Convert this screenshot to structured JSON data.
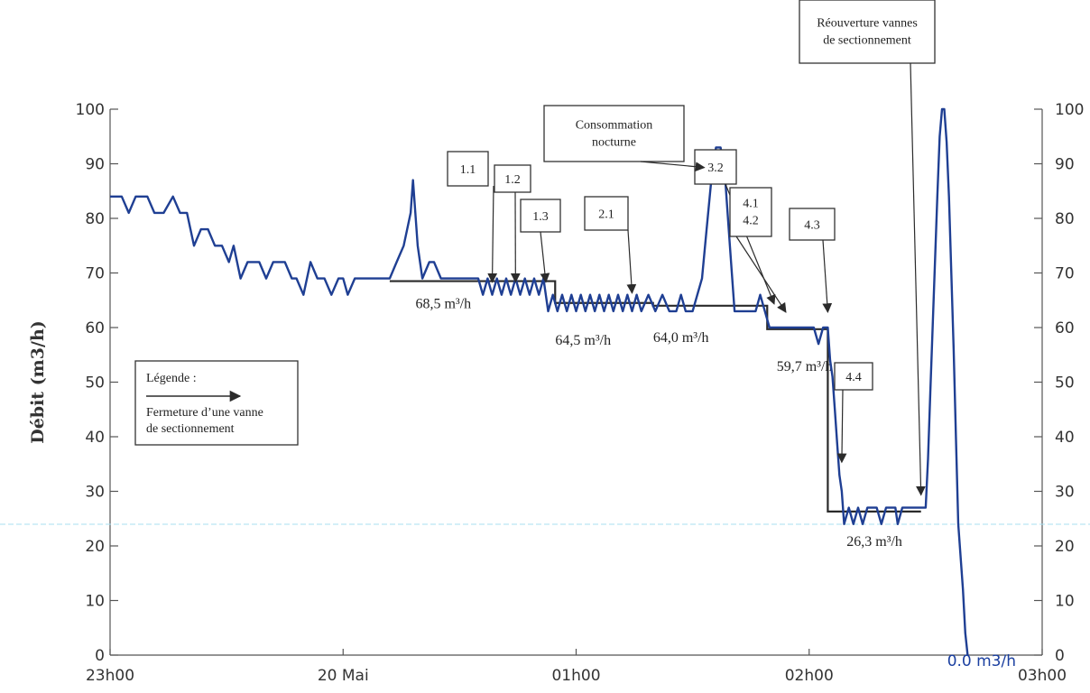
{
  "chart_data": {
    "type": "line",
    "ylabel": "Débit  (m3/h)",
    "ylim": [
      0,
      100
    ],
    "yticks": [
      0,
      10,
      20,
      30,
      40,
      50,
      60,
      70,
      80,
      90,
      100
    ],
    "xlim_hours": [
      0,
      4
    ],
    "xticks": [
      {
        "t": 0,
        "label": "23h00"
      },
      {
        "t": 1,
        "label": "20 Mai"
      },
      {
        "t": 2,
        "label": "01h00"
      },
      {
        "t": 3,
        "label": "02h00"
      },
      {
        "t": 4,
        "label": "03h00"
      }
    ],
    "grid": false,
    "series": [
      {
        "color": "#1f3f93",
        "points": [
          [
            0.0,
            84
          ],
          [
            0.05,
            84
          ],
          [
            0.08,
            81
          ],
          [
            0.11,
            84
          ],
          [
            0.16,
            84
          ],
          [
            0.19,
            81
          ],
          [
            0.23,
            81
          ],
          [
            0.27,
            84
          ],
          [
            0.3,
            81
          ],
          [
            0.33,
            81
          ],
          [
            0.36,
            75
          ],
          [
            0.39,
            78
          ],
          [
            0.42,
            78
          ],
          [
            0.45,
            75
          ],
          [
            0.48,
            75
          ],
          [
            0.51,
            72
          ],
          [
            0.53,
            75
          ],
          [
            0.56,
            69
          ],
          [
            0.59,
            72
          ],
          [
            0.64,
            72
          ],
          [
            0.67,
            69
          ],
          [
            0.7,
            72
          ],
          [
            0.75,
            72
          ],
          [
            0.78,
            69
          ],
          [
            0.8,
            69
          ],
          [
            0.83,
            66
          ],
          [
            0.86,
            72
          ],
          [
            0.89,
            69
          ],
          [
            0.92,
            69
          ],
          [
            0.95,
            66
          ],
          [
            0.98,
            69
          ],
          [
            1.0,
            69
          ],
          [
            1.02,
            66
          ],
          [
            1.05,
            69
          ],
          [
            1.1,
            69
          ],
          [
            1.15,
            69
          ],
          [
            1.2,
            69
          ],
          [
            1.23,
            72
          ],
          [
            1.26,
            75
          ],
          [
            1.29,
            81
          ],
          [
            1.3,
            87
          ],
          [
            1.31,
            81
          ],
          [
            1.32,
            75
          ],
          [
            1.34,
            69
          ],
          [
            1.37,
            72
          ],
          [
            1.39,
            72
          ],
          [
            1.42,
            69
          ],
          [
            1.45,
            69
          ],
          [
            1.5,
            69
          ],
          [
            1.55,
            69
          ],
          [
            1.58,
            69
          ],
          [
            1.6,
            66
          ],
          [
            1.62,
            69
          ],
          [
            1.64,
            66
          ],
          [
            1.66,
            69
          ],
          [
            1.68,
            66
          ],
          [
            1.7,
            69
          ],
          [
            1.72,
            66
          ],
          [
            1.74,
            69
          ],
          [
            1.76,
            66
          ],
          [
            1.78,
            69
          ],
          [
            1.8,
            66
          ],
          [
            1.82,
            69
          ],
          [
            1.84,
            66
          ],
          [
            1.86,
            69
          ],
          [
            1.88,
            63
          ],
          [
            1.9,
            66
          ],
          [
            1.92,
            63
          ],
          [
            1.94,
            66
          ],
          [
            1.96,
            63
          ],
          [
            1.98,
            66
          ],
          [
            2.0,
            63
          ],
          [
            2.02,
            66
          ],
          [
            2.04,
            63
          ],
          [
            2.06,
            66
          ],
          [
            2.08,
            63
          ],
          [
            2.1,
            66
          ],
          [
            2.12,
            63
          ],
          [
            2.14,
            66
          ],
          [
            2.16,
            63
          ],
          [
            2.18,
            66
          ],
          [
            2.2,
            63
          ],
          [
            2.22,
            66
          ],
          [
            2.24,
            63
          ],
          [
            2.26,
            66
          ],
          [
            2.28,
            63
          ],
          [
            2.31,
            66
          ],
          [
            2.34,
            63
          ],
          [
            2.37,
            66
          ],
          [
            2.4,
            63
          ],
          [
            2.43,
            63
          ],
          [
            2.45,
            66
          ],
          [
            2.47,
            63
          ],
          [
            2.5,
            63
          ],
          [
            2.52,
            66
          ],
          [
            2.54,
            69
          ],
          [
            2.56,
            78
          ],
          [
            2.58,
            87
          ],
          [
            2.6,
            93
          ],
          [
            2.62,
            93
          ],
          [
            2.64,
            87
          ],
          [
            2.66,
            75
          ],
          [
            2.68,
            63
          ],
          [
            2.71,
            63
          ],
          [
            2.73,
            63
          ],
          [
            2.75,
            63
          ],
          [
            2.77,
            63
          ],
          [
            2.79,
            66
          ],
          [
            2.81,
            63
          ],
          [
            2.83,
            60
          ],
          [
            2.85,
            60
          ],
          [
            2.9,
            60
          ],
          [
            2.95,
            60
          ],
          [
            3.0,
            60
          ],
          [
            3.02,
            60
          ],
          [
            3.04,
            57
          ],
          [
            3.06,
            60
          ],
          [
            3.08,
            60
          ],
          [
            3.09,
            54
          ],
          [
            3.1,
            51
          ],
          [
            3.11,
            45
          ],
          [
            3.12,
            39
          ],
          [
            3.13,
            33
          ],
          [
            3.14,
            30
          ],
          [
            3.15,
            24
          ],
          [
            3.17,
            27
          ],
          [
            3.19,
            24
          ],
          [
            3.21,
            27
          ],
          [
            3.23,
            24
          ],
          [
            3.25,
            27
          ],
          [
            3.27,
            27
          ],
          [
            3.29,
            27
          ],
          [
            3.31,
            24
          ],
          [
            3.33,
            27
          ],
          [
            3.35,
            27
          ],
          [
            3.37,
            27
          ],
          [
            3.38,
            24
          ],
          [
            3.4,
            27
          ],
          [
            3.42,
            27
          ],
          [
            3.44,
            27
          ],
          [
            3.46,
            27
          ],
          [
            3.48,
            27
          ],
          [
            3.5,
            27
          ],
          [
            3.51,
            36
          ],
          [
            3.52,
            48
          ],
          [
            3.53,
            60
          ],
          [
            3.54,
            72
          ],
          [
            3.55,
            84
          ],
          [
            3.56,
            95
          ],
          [
            3.57,
            100
          ],
          [
            3.58,
            100
          ],
          [
            3.59,
            94
          ],
          [
            3.6,
            84
          ],
          [
            3.61,
            70
          ],
          [
            3.62,
            56
          ],
          [
            3.63,
            40
          ],
          [
            3.64,
            24
          ],
          [
            3.66,
            12
          ],
          [
            3.67,
            4
          ],
          [
            3.68,
            0
          ]
        ]
      }
    ],
    "levels": [
      {
        "label": "68,5 m³/h",
        "value": 68.5,
        "t_start": 1.2,
        "t_end": 1.91
      },
      {
        "label": "64,5 m³/h",
        "value": 64.5,
        "t_start": 1.91,
        "t_end": 2.33
      },
      {
        "label": "64,0 m³/h",
        "value": 64.0,
        "t_start": 2.33,
        "t_end": 2.82
      },
      {
        "label": "59,7 m³/h",
        "value": 59.7,
        "t_start": 2.82,
        "t_end": 3.08
      },
      {
        "label": "26,3 m³/h",
        "value": 26.3,
        "t_start": 3.08,
        "t_end": 3.48
      }
    ],
    "zero_label": "0.0 m3/h",
    "annotations": [
      {
        "text": "1.1",
        "t": 1.64,
        "y_tip": 67
      },
      {
        "text": "1.2",
        "t": 1.74,
        "y_tip": 67
      },
      {
        "text": "1.3",
        "t": 1.87,
        "y_tip": 67
      },
      {
        "text": "2.1",
        "t": 2.24,
        "y_tip": 65
      },
      {
        "text": "3.2",
        "t": 2.85,
        "y_tip": 63
      },
      {
        "text": "4.1",
        "text2": "4.2",
        "t": 2.9,
        "y_tip": 61.5
      },
      {
        "text": "4.3",
        "t": 3.08,
        "y_tip": 61.5
      },
      {
        "text": "4.4",
        "t": 3.14,
        "y_tip": 34
      },
      {
        "text": "Consommation",
        "text2": "nocturne",
        "t": 2.55,
        "y_tip": 88
      },
      {
        "text": "Réouverture vannes",
        "text2": "de sectionnement",
        "t": 3.48,
        "y_tip": 28
      }
    ],
    "legend": {
      "title": "Légende :",
      "line1": "Fermeture d’une vanne",
      "line2": "de sectionnement"
    }
  }
}
